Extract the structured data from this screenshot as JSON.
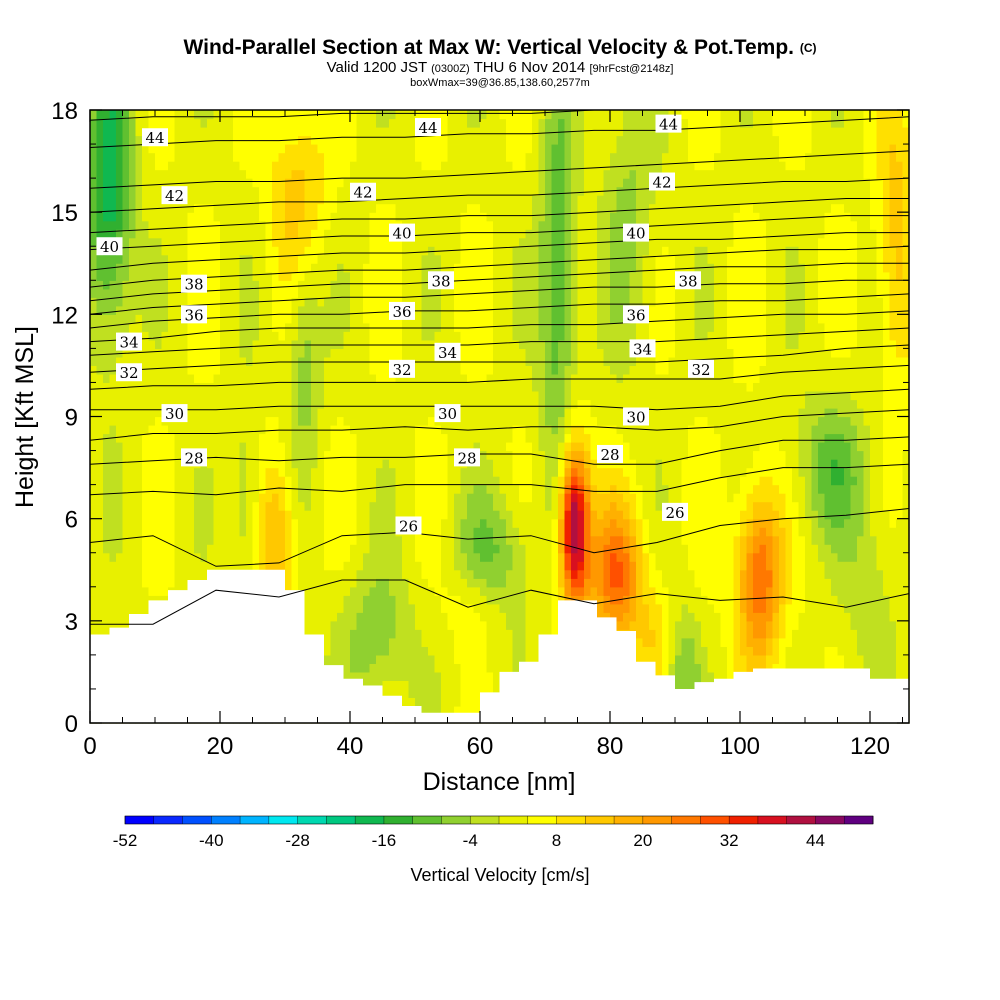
{
  "title_main": "Wind-Parallel Section at Max W: Vertical Velocity & Pot.Temp.",
  "title_copyright": "(C)",
  "subtitle_valid": "Valid 1200 JST",
  "subtitle_utc": "(0300Z)",
  "subtitle_date": "THU 6 Nov 2014",
  "subtitle_forecast": "[9hrFcst@2148z]",
  "subtitle2": "boxWmax=39@36.85,138.60,2577m",
  "chart_data": {
    "type": "heatmap",
    "xlabel": "Distance [nm]",
    "ylabel": "Height [Kft MSL]",
    "xlim": [
      0,
      126
    ],
    "ylim": [
      0,
      18
    ],
    "x_ticks": [
      0,
      20,
      40,
      60,
      80,
      100,
      120
    ],
    "y_ticks": [
      0,
      3,
      6,
      9,
      12,
      15,
      18
    ],
    "colorbar": {
      "label": "Vertical Velocity [cm/s]",
      "min": -52,
      "max": 52,
      "step": 4,
      "tick_labels": [
        "-52",
        "-40",
        "-28",
        "-16",
        "-4",
        "8",
        "20",
        "32",
        "44"
      ],
      "colors": [
        "#0000ff",
        "#0a28ff",
        "#0050ff",
        "#0080ff",
        "#00b4ff",
        "#00e8f0",
        "#00d8b0",
        "#00c880",
        "#10b850",
        "#30b030",
        "#60c030",
        "#90d030",
        "#c0e020",
        "#e8f000",
        "#ffff00",
        "#ffe000",
        "#ffc800",
        "#ffb000",
        "#ff9800",
        "#ff7800",
        "#ff5000",
        "#f02000",
        "#d81020",
        "#b01040",
        "#880860",
        "#600080"
      ]
    },
    "theta_contours": {
      "label_values": [
        "26",
        "28",
        "30",
        "32",
        "34",
        "36",
        "38",
        "40",
        "42",
        "44"
      ],
      "levels": [
        {
          "value": 25,
          "heights": [
            2.9,
            2.9,
            3.9,
            3.7,
            4.2,
            4.2,
            3.4,
            3.9,
            3.5,
            3.8,
            3.6,
            3.7,
            3.4,
            3.8
          ]
        },
        {
          "value": 26,
          "heights": [
            5.3,
            5.5,
            4.6,
            4.7,
            5.5,
            5.6,
            5.4,
            5.5,
            5.0,
            5.3,
            5.8,
            6.0,
            6.1,
            6.3
          ]
        },
        {
          "value": 27,
          "heights": [
            6.7,
            6.8,
            6.7,
            6.9,
            6.8,
            7.0,
            7.0,
            7.0,
            6.8,
            6.8,
            7.2,
            7.5,
            7.5,
            7.6
          ]
        },
        {
          "value": 28,
          "heights": [
            7.6,
            7.7,
            7.8,
            7.7,
            7.8,
            7.8,
            7.9,
            7.9,
            7.6,
            7.6,
            8.0,
            8.3,
            8.3,
            8.4
          ]
        },
        {
          "value": 29,
          "heights": [
            8.3,
            8.5,
            8.5,
            8.6,
            8.6,
            8.7,
            8.6,
            8.7,
            8.7,
            8.6,
            8.7,
            9.0,
            9.1,
            9.2
          ]
        },
        {
          "value": 30,
          "heights": [
            9.2,
            9.2,
            9.2,
            9.3,
            9.3,
            9.3,
            9.3,
            9.3,
            9.3,
            9.2,
            9.3,
            9.6,
            9.7,
            9.8
          ]
        },
        {
          "value": 31,
          "heights": [
            9.8,
            9.9,
            9.9,
            10.0,
            10.0,
            10.0,
            10.0,
            10.1,
            10.1,
            10.1,
            10.1,
            10.3,
            10.4,
            10.5
          ]
        },
        {
          "value": 32,
          "heights": [
            10.3,
            10.4,
            10.5,
            10.6,
            10.6,
            10.6,
            10.6,
            10.6,
            10.6,
            10.6,
            10.7,
            10.8,
            11.0,
            11.1
          ]
        },
        {
          "value": 33,
          "heights": [
            10.8,
            10.9,
            11.0,
            11.1,
            11.1,
            11.1,
            11.1,
            11.2,
            11.2,
            11.2,
            11.3,
            11.4,
            11.5,
            11.6
          ]
        },
        {
          "value": 34,
          "heights": [
            11.2,
            11.3,
            11.5,
            11.6,
            11.6,
            11.6,
            11.6,
            11.7,
            11.7,
            11.8,
            11.9,
            12.0,
            12.0,
            12.1
          ]
        },
        {
          "value": 35,
          "heights": [
            11.6,
            11.8,
            11.9,
            12.0,
            12.0,
            12.1,
            12.1,
            12.2,
            12.3,
            12.3,
            12.4,
            12.4,
            12.5,
            12.6
          ]
        },
        {
          "value": 36,
          "heights": [
            12.0,
            12.2,
            12.3,
            12.4,
            12.5,
            12.5,
            12.6,
            12.7,
            12.8,
            12.8,
            12.9,
            12.9,
            13.0,
            13.0
          ]
        },
        {
          "value": 37,
          "heights": [
            12.4,
            12.6,
            12.7,
            12.8,
            12.9,
            12.9,
            13.0,
            13.1,
            13.2,
            13.3,
            13.4,
            13.4,
            13.5,
            13.5
          ]
        },
        {
          "value": 38,
          "heights": [
            12.8,
            13.0,
            13.1,
            13.2,
            13.3,
            13.3,
            13.4,
            13.5,
            13.6,
            13.7,
            13.8,
            13.9,
            13.9,
            14.0
          ]
        },
        {
          "value": 39,
          "heights": [
            13.3,
            13.5,
            13.6,
            13.7,
            13.8,
            13.8,
            13.9,
            14.0,
            14.1,
            14.2,
            14.2,
            14.3,
            14.4,
            14.4
          ]
        },
        {
          "value": 40,
          "heights": [
            13.9,
            14.0,
            14.1,
            14.2,
            14.3,
            14.3,
            14.4,
            14.4,
            14.5,
            14.6,
            14.7,
            14.8,
            14.9,
            14.9
          ]
        },
        {
          "value": 41,
          "heights": [
            14.4,
            14.5,
            14.6,
            14.7,
            14.8,
            14.8,
            14.9,
            14.9,
            15.0,
            15.1,
            15.2,
            15.3,
            15.4,
            15.4
          ]
        },
        {
          "value": 42,
          "heights": [
            15.0,
            15.1,
            15.2,
            15.3,
            15.3,
            15.4,
            15.5,
            15.5,
            15.6,
            15.7,
            15.8,
            15.9,
            15.9,
            16.0
          ]
        },
        {
          "value": 43,
          "heights": [
            15.7,
            15.8,
            15.9,
            15.9,
            16.0,
            16.0,
            16.1,
            16.2,
            16.3,
            16.4,
            16.5,
            16.6,
            16.7,
            16.8
          ]
        },
        {
          "value": 44,
          "heights": [
            16.9,
            17.0,
            17.1,
            17.1,
            17.2,
            17.2,
            17.3,
            17.3,
            17.4,
            17.4,
            17.5,
            17.6,
            17.7,
            17.8
          ]
        },
        {
          "value": 45,
          "heights": [
            17.7,
            17.8,
            17.8,
            17.8,
            17.9,
            17.9,
            17.9,
            17.9,
            18.0,
            18.0,
            18.0,
            18.0,
            18.0,
            18.0
          ]
        }
      ]
    },
    "contour_labels": [
      {
        "text": "44",
        "x": 10,
        "y": 17.2
      },
      {
        "text": "44",
        "x": 52,
        "y": 17.5
      },
      {
        "text": "44",
        "x": 89,
        "y": 17.6
      },
      {
        "text": "42",
        "x": 13,
        "y": 15.5
      },
      {
        "text": "42",
        "x": 42,
        "y": 15.6
      },
      {
        "text": "42",
        "x": 88,
        "y": 15.9
      },
      {
        "text": "40",
        "x": 3,
        "y": 14.0
      },
      {
        "text": "40",
        "x": 48,
        "y": 14.4
      },
      {
        "text": "40",
        "x": 84,
        "y": 14.4
      },
      {
        "text": "38",
        "x": 16,
        "y": 12.9
      },
      {
        "text": "38",
        "x": 54,
        "y": 13.0
      },
      {
        "text": "38",
        "x": 92,
        "y": 13.0
      },
      {
        "text": "36",
        "x": 16,
        "y": 12.0
      },
      {
        "text": "36",
        "x": 48,
        "y": 12.1
      },
      {
        "text": "36",
        "x": 84,
        "y": 12.0
      },
      {
        "text": "34",
        "x": 6,
        "y": 11.2
      },
      {
        "text": "34",
        "x": 55,
        "y": 10.9
      },
      {
        "text": "34",
        "x": 85,
        "y": 11.0
      },
      {
        "text": "32",
        "x": 6,
        "y": 10.3
      },
      {
        "text": "32",
        "x": 48,
        "y": 10.4
      },
      {
        "text": "32",
        "x": 94,
        "y": 10.4
      },
      {
        "text": "30",
        "x": 13,
        "y": 9.1
      },
      {
        "text": "30",
        "x": 55,
        "y": 9.1
      },
      {
        "text": "30",
        "x": 84,
        "y": 9.0
      },
      {
        "text": "28",
        "x": 16,
        "y": 7.8
      },
      {
        "text": "28",
        "x": 58,
        "y": 7.8
      },
      {
        "text": "28",
        "x": 80,
        "y": 7.9
      },
      {
        "text": "26",
        "x": 49,
        "y": 5.8
      },
      {
        "text": "26",
        "x": 90,
        "y": 6.2
      }
    ],
    "terrain": {
      "x": [
        0,
        3,
        6,
        9,
        12,
        15,
        18,
        21,
        24,
        27,
        30,
        33,
        36,
        39,
        42,
        45,
        48,
        51,
        54,
        57,
        60,
        63,
        66,
        69,
        72,
        75,
        78,
        81,
        84,
        87,
        90,
        93,
        96,
        99,
        102,
        105,
        108,
        111,
        114,
        117,
        120,
        123,
        126
      ],
      "heights": [
        2.6,
        2.8,
        3.2,
        3.6,
        3.9,
        4.2,
        4.5,
        4.5,
        4.5,
        4.5,
        3.9,
        2.6,
        1.7,
        1.3,
        1.1,
        0.8,
        0.5,
        0.3,
        0.3,
        0.3,
        0.9,
        1.5,
        1.8,
        2.6,
        3.6,
        3.6,
        3.1,
        2.7,
        1.8,
        1.4,
        1.0,
        1.2,
        1.3,
        1.5,
        1.6,
        1.6,
        1.6,
        1.6,
        1.6,
        1.6,
        1.3,
        1.3,
        1.3
      ]
    },
    "updraft_cores": [
      {
        "x": 74.5,
        "y": 5.8,
        "sx": 1.6,
        "sy": 1.7,
        "amp": 44
      },
      {
        "x": 81,
        "y": 4.3,
        "sx": 3.0,
        "sy": 1.5,
        "amp": 24
      },
      {
        "x": 103,
        "y": 4.3,
        "sx": 2.5,
        "sy": 1.8,
        "amp": 26
      },
      {
        "x": 29,
        "y": 5.3,
        "sx": 2.0,
        "sy": 1.8,
        "amp": 14
      },
      {
        "x": 32,
        "y": 15.5,
        "sx": 3.0,
        "sy": 1.8,
        "amp": 12
      },
      {
        "x": 124,
        "y": 14,
        "sx": 2.0,
        "sy": 3.0,
        "amp": 12
      },
      {
        "x": 60,
        "y": 3.5,
        "sx": 3.5,
        "sy": 1.0,
        "amp": 10
      },
      {
        "x": 89,
        "y": 2.5,
        "sx": 3.0,
        "sy": 1.0,
        "amp": 10
      }
    ],
    "downdraft_cores": [
      {
        "x": 3,
        "y": 15.5,
        "sx": 2.5,
        "sy": 3.0,
        "amp": -22
      },
      {
        "x": 72,
        "y": 13,
        "sx": 2.0,
        "sy": 4.0,
        "amp": -16
      },
      {
        "x": 62,
        "y": 4.5,
        "sx": 4.0,
        "sy": 1.5,
        "amp": -14
      },
      {
        "x": 44,
        "y": 2.5,
        "sx": 4.0,
        "sy": 1.5,
        "amp": -10
      },
      {
        "x": 91,
        "y": 2.0,
        "sx": 2.0,
        "sy": 1.2,
        "amp": -16
      },
      {
        "x": 114,
        "y": 7.5,
        "sx": 4.0,
        "sy": 1.5,
        "amp": -12
      },
      {
        "x": 33,
        "y": 11,
        "sx": 1.8,
        "sy": 2.5,
        "amp": -10
      },
      {
        "x": 24,
        "y": 6.5,
        "sx": 1.5,
        "sy": 2.0,
        "amp": -8
      },
      {
        "x": 83,
        "y": 15,
        "sx": 3.0,
        "sy": 3.0,
        "amp": -8
      },
      {
        "x": 120,
        "y": 4.0,
        "sx": 3.0,
        "sy": 2.0,
        "amp": -6
      }
    ]
  }
}
